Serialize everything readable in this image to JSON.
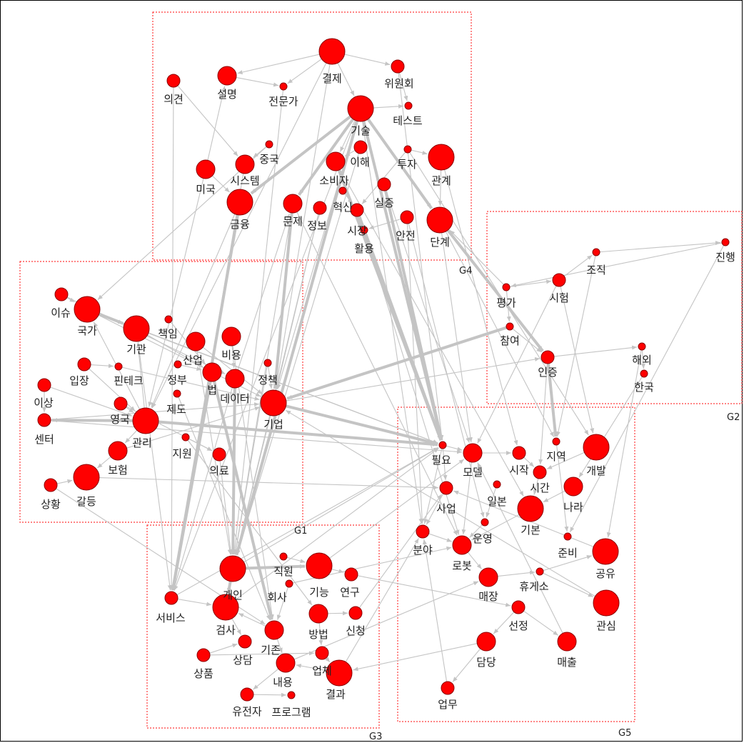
{
  "groups": [
    {
      "id": "G1",
      "label": "G1"
    },
    {
      "id": "G2",
      "label": "G2"
    },
    {
      "id": "G3",
      "label": "G3"
    },
    {
      "id": "G4",
      "label": "G4"
    },
    {
      "id": "G5",
      "label": "G5"
    }
  ],
  "nodes": [
    {
      "id": "gyeolje",
      "label": "결제",
      "group": "G4",
      "size": "large"
    },
    {
      "id": "wiwonhoe",
      "label": "위원회",
      "group": "G4",
      "size": "small"
    },
    {
      "id": "uigyeon",
      "label": "의견",
      "group": "G4",
      "size": "small"
    },
    {
      "id": "seolmyeong",
      "label": "설명",
      "group": "G4",
      "size": "medium"
    },
    {
      "id": "jeonmunga",
      "label": "전문가",
      "group": "G4",
      "size": "tiny"
    },
    {
      "id": "gisul",
      "label": "기술",
      "group": "G4",
      "size": "large"
    },
    {
      "id": "teseuteu",
      "label": "테스트",
      "group": "G4",
      "size": "tiny"
    },
    {
      "id": "jungguk",
      "label": "중국",
      "group": "G4",
      "size": "tiny"
    },
    {
      "id": "ihae",
      "label": "이해",
      "group": "G4",
      "size": "small"
    },
    {
      "id": "tuja",
      "label": "투자",
      "group": "G4",
      "size": "tiny"
    },
    {
      "id": "gwangye",
      "label": "관계",
      "group": "G4",
      "size": "large"
    },
    {
      "id": "miguk",
      "label": "미국",
      "group": "G4",
      "size": "medium"
    },
    {
      "id": "siseutem",
      "label": "시스템",
      "group": "G4",
      "size": "medium"
    },
    {
      "id": "sobija",
      "label": "소비자",
      "group": "G4",
      "size": "medium"
    },
    {
      "id": "silsheung",
      "label": "실증",
      "group": "G4",
      "size": "small"
    },
    {
      "id": "geumyung",
      "label": "금융",
      "group": "G4",
      "size": "large"
    },
    {
      "id": "munje",
      "label": "문제",
      "group": "G4",
      "size": "medium"
    },
    {
      "id": "jeongbo",
      "label": "정보",
      "group": "G4",
      "size": "small"
    },
    {
      "id": "hyeoksin",
      "label": "혁신",
      "group": "G4",
      "size": "tiny"
    },
    {
      "id": "sijang",
      "label": "시장",
      "group": "G4",
      "size": "small"
    },
    {
      "id": "hwalyong",
      "label": "활용",
      "group": "G4",
      "size": "tiny"
    },
    {
      "id": "anjeon",
      "label": "안전",
      "group": "G4",
      "size": "small"
    },
    {
      "id": "dangye",
      "label": "단계",
      "group": "G4",
      "size": "large"
    },
    {
      "id": "jinhaeng",
      "label": "진행",
      "group": "G2",
      "size": "tiny"
    },
    {
      "id": "jojik",
      "label": "조직",
      "group": "G2",
      "size": "tiny"
    },
    {
      "id": "siheom",
      "label": "시험",
      "group": "G2",
      "size": "small"
    },
    {
      "id": "pyeongga",
      "label": "평가",
      "group": "G2",
      "size": "tiny"
    },
    {
      "id": "chamyeo",
      "label": "참여",
      "group": "G2",
      "size": "tiny"
    },
    {
      "id": "injeung",
      "label": "인증",
      "group": "G2",
      "size": "small"
    },
    {
      "id": "haeoe",
      "label": "해외",
      "group": "G2",
      "size": "tiny"
    },
    {
      "id": "hanguk",
      "label": "한국",
      "group": "G2",
      "size": "tiny"
    },
    {
      "id": "isyu",
      "label": "이슈",
      "group": "G1",
      "size": "small"
    },
    {
      "id": "gukga",
      "label": "국가",
      "group": "G1",
      "size": "large"
    },
    {
      "id": "gigwan",
      "label": "기관",
      "group": "G1",
      "size": "large"
    },
    {
      "id": "chaegim",
      "label": "책임",
      "group": "G1",
      "size": "tiny"
    },
    {
      "id": "saneop",
      "label": "산업",
      "group": "G1",
      "size": "medium"
    },
    {
      "id": "biyong",
      "label": "비용",
      "group": "G1",
      "size": "medium"
    },
    {
      "id": "ipjang",
      "label": "입장",
      "group": "G1",
      "size": "small"
    },
    {
      "id": "pintech",
      "label": "핀테크",
      "group": "G1",
      "size": "tiny"
    },
    {
      "id": "jeongbu",
      "label": "정부",
      "group": "G1",
      "size": "tiny"
    },
    {
      "id": "beop",
      "label": "법",
      "group": "G1",
      "size": "medium"
    },
    {
      "id": "jeongchaek",
      "label": "정책",
      "group": "G1",
      "size": "tiny"
    },
    {
      "id": "deiteo",
      "label": "데이터",
      "group": "G1",
      "size": "medium"
    },
    {
      "id": "isang",
      "label": "이상",
      "group": "G1",
      "size": "small"
    },
    {
      "id": "jedo",
      "label": "제도",
      "group": "G1",
      "size": "tiny"
    },
    {
      "id": "giyeop",
      "label": "기업",
      "group": "G1",
      "size": "large"
    },
    {
      "id": "yeongguk",
      "label": "영국",
      "group": "G1",
      "size": "small"
    },
    {
      "id": "senteo",
      "label": "센터",
      "group": "G1",
      "size": "small"
    },
    {
      "id": "gwalli",
      "label": "관리",
      "group": "G1",
      "size": "large"
    },
    {
      "id": "jiwon",
      "label": "지원",
      "group": "G1",
      "size": "tiny"
    },
    {
      "id": "bohyeom",
      "label": "보험",
      "group": "G1",
      "size": "medium"
    },
    {
      "id": "uiryo",
      "label": "의료",
      "group": "G1",
      "size": "small"
    },
    {
      "id": "sanghwang",
      "label": "상황",
      "group": "G1",
      "size": "small"
    },
    {
      "id": "galdeung",
      "label": "갈등",
      "group": "G1",
      "size": "large"
    },
    {
      "id": "piryo",
      "label": "필요",
      "group": "G5",
      "size": "tiny"
    },
    {
      "id": "model",
      "label": "모델",
      "group": "G5",
      "size": "medium"
    },
    {
      "id": "sijak",
      "label": "시작",
      "group": "G5",
      "size": "small"
    },
    {
      "id": "jiyeok",
      "label": "지역",
      "group": "G5",
      "size": "tiny"
    },
    {
      "id": "gaebal",
      "label": "개발",
      "group": "G5",
      "size": "large"
    },
    {
      "id": "ilbon",
      "label": "일본",
      "group": "G5",
      "size": "tiny"
    },
    {
      "id": "sigan",
      "label": "시간",
      "group": "G5",
      "size": "small"
    },
    {
      "id": "nara",
      "label": "나라",
      "group": "G5",
      "size": "medium"
    },
    {
      "id": "saeop",
      "label": "사업",
      "group": "G5",
      "size": "small"
    },
    {
      "id": "gibon",
      "label": "기본",
      "group": "G5",
      "size": "large"
    },
    {
      "id": "unyeong",
      "label": "운영",
      "group": "G5",
      "size": "tiny"
    },
    {
      "id": "bunya",
      "label": "분야",
      "group": "G5",
      "size": "small"
    },
    {
      "id": "junbi",
      "label": "준비",
      "group": "G5",
      "size": "tiny"
    },
    {
      "id": "robot",
      "label": "로봇",
      "group": "G5",
      "size": "medium"
    },
    {
      "id": "gongyu",
      "label": "공유",
      "group": "G5",
      "size": "large"
    },
    {
      "id": "maejang",
      "label": "매장",
      "group": "G5",
      "size": "medium"
    },
    {
      "id": "hyugeso",
      "label": "휴게소",
      "group": "G5",
      "size": "tiny"
    },
    {
      "id": "gwansim",
      "label": "관심",
      "group": "G5",
      "size": "large"
    },
    {
      "id": "seonjeong",
      "label": "선정",
      "group": "G5",
      "size": "small"
    },
    {
      "id": "damdang",
      "label": "담당",
      "group": "G5",
      "size": "medium"
    },
    {
      "id": "maechul",
      "label": "매출",
      "group": "G5",
      "size": "medium"
    },
    {
      "id": "eommu",
      "label": "업무",
      "group": "G5",
      "size": "small"
    },
    {
      "id": "gaein",
      "label": "개인",
      "group": "G3",
      "size": "large"
    },
    {
      "id": "jigwon",
      "label": "직원",
      "group": "G3",
      "size": "tiny"
    },
    {
      "id": "gineung",
      "label": "기능",
      "group": "G3",
      "size": "large"
    },
    {
      "id": "yeongu",
      "label": "연구",
      "group": "G3",
      "size": "small"
    },
    {
      "id": "hoesa",
      "label": "회사",
      "group": "G3",
      "size": "tiny"
    },
    {
      "id": "seobiseu",
      "label": "서비스",
      "group": "G3",
      "size": "small"
    },
    {
      "id": "geomsa",
      "label": "검사",
      "group": "G3",
      "size": "large"
    },
    {
      "id": "bangbeop",
      "label": "방법",
      "group": "G3",
      "size": "medium"
    },
    {
      "id": "sincheong",
      "label": "신청",
      "group": "G3",
      "size": "small"
    },
    {
      "id": "gijon",
      "label": "기존",
      "group": "G3",
      "size": "medium"
    },
    {
      "id": "sangdam",
      "label": "상담",
      "group": "G3",
      "size": "small"
    },
    {
      "id": "sangpum",
      "label": "상품",
      "group": "G3",
      "size": "small"
    },
    {
      "id": "naeyong",
      "label": "내용",
      "group": "G3",
      "size": "medium"
    },
    {
      "id": "eopche",
      "label": "업체",
      "group": "G3",
      "size": "small"
    },
    {
      "id": "gyeolgwa",
      "label": "결과",
      "group": "G3",
      "size": "large"
    },
    {
      "id": "yujeonja",
      "label": "유전자",
      "group": "G3",
      "size": "small"
    },
    {
      "id": "peurogeuraem",
      "label": "프로그램",
      "group": "G3",
      "size": "tiny"
    }
  ],
  "edges": [
    [
      "gyeolje",
      "gisul"
    ],
    [
      "gyeolje",
      "wiwonhoe"
    ],
    [
      "gyeolje",
      "jeonmunga"
    ],
    [
      "gyeolje",
      "seolmyeong"
    ],
    [
      "gisul",
      "sobija"
    ],
    [
      "gisul",
      "munje"
    ],
    [
      "gisul",
      "geumyung"
    ],
    [
      "gisul",
      "piryo"
    ],
    [
      "gisul",
      "dangye"
    ],
    [
      "gisul",
      "giyeop"
    ],
    [
      "gisul",
      "gaein"
    ],
    [
      "gisul",
      "seobiseu"
    ],
    [
      "gisul",
      "teseuteu"
    ],
    [
      "munje",
      "giyeop"
    ],
    [
      "munje",
      "gaein"
    ],
    [
      "geumyung",
      "seobiseu"
    ],
    [
      "geumyung",
      "gwalli"
    ],
    [
      "jeongbo",
      "gaein"
    ],
    [
      "jeongbo",
      "giyeop"
    ],
    [
      "sobija",
      "piryo"
    ],
    [
      "sijang",
      "piryo"
    ],
    [
      "dangye",
      "injeung"
    ],
    [
      "dangye",
      "jiyeok"
    ],
    [
      "dangye",
      "model"
    ],
    [
      "silsheung",
      "piryo"
    ],
    [
      "giyeop",
      "piryo"
    ],
    [
      "giyeop",
      "gaein"
    ],
    [
      "giyeop",
      "injeung"
    ],
    [
      "gwalli",
      "piryo"
    ],
    [
      "gwalli",
      "senteo"
    ],
    [
      "gwalli",
      "bohyeom"
    ],
    [
      "gwalli",
      "gigwan"
    ],
    [
      "gwalli",
      "gukga"
    ],
    [
      "beop",
      "seobiseu"
    ],
    [
      "beop",
      "gijon"
    ],
    [
      "deiteo",
      "gaein"
    ],
    [
      "deiteo",
      "munje"
    ],
    [
      "gukga",
      "gigwan"
    ],
    [
      "gigwan",
      "beop"
    ],
    [
      "saneop",
      "giyeop"
    ],
    [
      "biyong",
      "deiteo"
    ],
    [
      "jeongchaek",
      "giyeop"
    ],
    [
      "isyu",
      "gukga"
    ],
    [
      "ipjang",
      "pintech"
    ],
    [
      "isang",
      "senteo"
    ],
    [
      "yeongguk",
      "gwalli"
    ],
    [
      "bohyeom",
      "galdeung"
    ],
    [
      "sanghwang",
      "galdeung"
    ],
    [
      "jiwon",
      "uiryo"
    ],
    [
      "piryo",
      "model"
    ],
    [
      "piryo",
      "saeop"
    ],
    [
      "piryo",
      "bunya"
    ],
    [
      "model",
      "sijak"
    ],
    [
      "sijak",
      "sigan"
    ],
    [
      "sigan",
      "gibon"
    ],
    [
      "gibon",
      "robot"
    ],
    [
      "robot",
      "maejang"
    ],
    [
      "maejang",
      "hyugeso"
    ],
    [
      "hyugeso",
      "gwansim"
    ],
    [
      "hyugeso",
      "gongyu"
    ],
    [
      "seonjeong",
      "maechul"
    ],
    [
      "damdang",
      "eommu"
    ],
    [
      "bunya",
      "robot"
    ],
    [
      "unyeong",
      "robot"
    ],
    [
      "nara",
      "gibon"
    ],
    [
      "gaebal",
      "sigan"
    ],
    [
      "jiyeok",
      "junbi"
    ],
    [
      "saeop",
      "bunya"
    ],
    [
      "ilbon",
      "unyeong"
    ],
    [
      "model",
      "robot"
    ],
    [
      "seonjeong",
      "damdang"
    ],
    [
      "gaein",
      "gineung"
    ],
    [
      "gaein",
      "geomsa"
    ],
    [
      "geomsa",
      "sangdam"
    ],
    [
      "gijon",
      "naeyong"
    ],
    [
      "naeyong",
      "yujeonja"
    ],
    [
      "eopche",
      "gyeolgwa"
    ],
    [
      "bangbeop",
      "sincheong"
    ],
    [
      "gineung",
      "yeongu"
    ],
    [
      "sangpum",
      "sangdam"
    ],
    [
      "seobiseu",
      "geomsa"
    ],
    [
      "hoesa",
      "gijon"
    ],
    [
      "jigwon",
      "gineung"
    ],
    [
      "yujeonja",
      "peurogeuraem"
    ],
    [
      "gyeolgwa",
      "naeyong"
    ],
    [
      "bangbeop",
      "eopche"
    ],
    [
      "gijon",
      "geomsa"
    ],
    [
      "pyeongga",
      "chamyeo"
    ],
    [
      "pyeongga",
      "siheom"
    ],
    [
      "siheom",
      "jojik"
    ],
    [
      "jojik",
      "jinhaeng"
    ],
    [
      "chamyeo",
      "injeung"
    ],
    [
      "injeung",
      "haeoe"
    ],
    [
      "haeoe",
      "hanguk"
    ],
    [
      "jinhaeng",
      "pyeongga"
    ],
    [
      "pyeongga",
      "dangye"
    ],
    [
      "injeung",
      "jiyeok"
    ],
    [
      "chamyeo",
      "giyeop"
    ],
    [
      "siheom",
      "model"
    ],
    [
      "miguk",
      "geumyung"
    ],
    [
      "miguk",
      "seolmyeong"
    ],
    [
      "uigyeon",
      "siseutem"
    ],
    [
      "jungguk",
      "siseutem"
    ],
    [
      "ihae",
      "sobija"
    ],
    [
      "tuja",
      "sijang"
    ],
    [
      "gwangye",
      "dangye"
    ],
    [
      "anjeon",
      "hwalyong"
    ],
    [
      "hyeoksin",
      "sijang"
    ],
    [
      "seolmyeong",
      "jeonmunga"
    ],
    [
      "wiwonhoe",
      "teseuteu"
    ],
    [
      "tuja",
      "gwangye"
    ],
    [
      "gukga",
      "piryo"
    ],
    [
      "gigwan",
      "piryo"
    ],
    [
      "gaein",
      "piryo"
    ],
    [
      "geomsa",
      "piryo"
    ],
    [
      "seobiseu",
      "piryo"
    ],
    [
      "galdeung",
      "saeop"
    ],
    [
      "senteo",
      "model"
    ],
    [
      "jedo",
      "gijon"
    ],
    [
      "chaegim",
      "beop"
    ],
    [
      "jeongbu",
      "beop"
    ],
    [
      "pintech",
      "giyeop"
    ],
    [
      "uiryo",
      "gaein"
    ],
    [
      "jiwon",
      "bangbeop"
    ],
    [
      "deiteo",
      "seobiseu"
    ],
    [
      "munje",
      "robot"
    ],
    [
      "sobija",
      "gibon"
    ],
    [
      "gisul",
      "bunya"
    ],
    [
      "hwalyong",
      "robot"
    ],
    [
      "gwansim",
      "giyeop"
    ],
    [
      "gongyu",
      "saeop"
    ],
    [
      "maechul",
      "model"
    ],
    [
      "eommu",
      "bunya"
    ],
    [
      "damdang",
      "gyeolgwa"
    ],
    [
      "gyeolgwa",
      "bunya"
    ],
    [
      "gineung",
      "model"
    ],
    [
      "sincheong",
      "saeop"
    ],
    [
      "naeyong",
      "maejang"
    ],
    [
      "sangpum",
      "eopche"
    ],
    [
      "yeongu",
      "seonjeong"
    ],
    [
      "hoesa",
      "robot"
    ],
    [
      "injeung",
      "sigan"
    ],
    [
      "siheom",
      "gaebal"
    ],
    [
      "hanguk",
      "nara"
    ],
    [
      "jinhaeng",
      "junbi"
    ],
    [
      "jojik",
      "jiyeok"
    ],
    [
      "haeoe",
      "gongyu"
    ],
    [
      "gwangye",
      "sijak"
    ],
    [
      "anjeon",
      "unyeong"
    ],
    [
      "gyeolje",
      "giyeop"
    ],
    [
      "gyeolje",
      "gwalli"
    ],
    [
      "wiwonhoe",
      "piryo"
    ],
    [
      "jeonmunga",
      "gaein"
    ],
    [
      "uigyeon",
      "seobiseu"
    ],
    [
      "miguk",
      "gwalli"
    ],
    [
      "jungguk",
      "gukga"
    ],
    [
      "siseutem",
      "seobiseu"
    ],
    [
      "ihae",
      "gaein"
    ],
    [
      "silsheung",
      "model"
    ],
    [
      "tuja",
      "gaebal"
    ],
    [
      "anjeon",
      "bunya"
    ],
    [
      "isyu",
      "deiteo"
    ],
    [
      "gukga",
      "giyeop"
    ],
    [
      "gigwan",
      "seobiseu"
    ],
    [
      "saneop",
      "gaein"
    ],
    [
      "biyong",
      "gijon"
    ],
    [
      "jeongchaek",
      "gaein"
    ],
    [
      "ipjang",
      "gwalli"
    ],
    [
      "isang",
      "gwalli"
    ],
    [
      "senteo",
      "giyeop"
    ],
    [
      "bohyeom",
      "giyeop"
    ],
    [
      "sanghwang",
      "gijon"
    ],
    [
      "yeongguk",
      "uiryo"
    ]
  ],
  "thick_edges": [
    [
      "gisul",
      "dangye"
    ],
    [
      "gisul",
      "piryo"
    ],
    [
      "gisul",
      "munje"
    ],
    [
      "gisul",
      "geumyung"
    ],
    [
      "munje",
      "giyeop"
    ],
    [
      "giyeop",
      "piryo"
    ],
    [
      "gwalli",
      "piryo"
    ],
    [
      "gwalli",
      "senteo"
    ],
    [
      "dangye",
      "injeung"
    ],
    [
      "chamyeo",
      "giyeop"
    ],
    [
      "geumyung",
      "seobiseu"
    ],
    [
      "gisul",
      "gaein"
    ],
    [
      "beop",
      "seobiseu"
    ],
    [
      "deiteo",
      "gaein"
    ],
    [
      "sobija",
      "piryo"
    ],
    [
      "sijang",
      "piryo"
    ],
    [
      "silsheung",
      "piryo"
    ],
    [
      "gaein",
      "geomsa"
    ],
    [
      "gaein",
      "gineung"
    ],
    [
      "injeung",
      "jiyeok"
    ],
    [
      "gukga",
      "gigwan"
    ],
    [
      "beop",
      "gijon"
    ]
  ]
}
